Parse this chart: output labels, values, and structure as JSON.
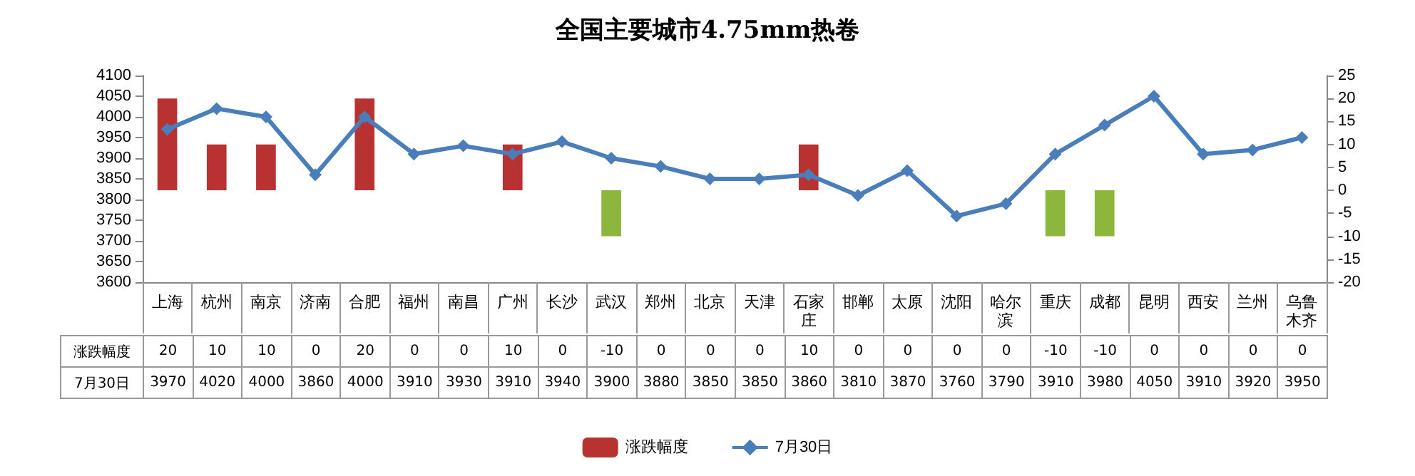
{
  "chart_data": {
    "type": "bar",
    "title": "全国主要城市4.75mm热卷",
    "categories": [
      "上海",
      "杭州",
      "南京",
      "济南",
      "合肥",
      "福州",
      "南昌",
      "广州",
      "长沙",
      "武汉",
      "郑州",
      "北京",
      "天津",
      "石家庄",
      "邯郸",
      "太原",
      "沈阳",
      "哈尔滨",
      "重庆",
      "成都",
      "昆明",
      "西安",
      "兰州",
      "乌鲁木齐"
    ],
    "series": [
      {
        "name": "涨跌幅度",
        "axis": "y2",
        "color": "#b83232",
        "colors": [
          "#b83232",
          "#b83232",
          "#b83232",
          "#b83232",
          "#b83232",
          "#b83232",
          "#b83232",
          "#b83232",
          "#b83232",
          "#8db63c",
          "#b83232",
          "#b83232",
          "#b83232",
          "#b83232",
          "#b83232",
          "#b83232",
          "#b83232",
          "#b83232",
          "#8db63c",
          "#8db63c",
          "#b83232",
          "#b83232",
          "#b83232",
          "#b83232"
        ],
        "values": [
          20,
          10,
          10,
          0,
          20,
          0,
          0,
          10,
          0,
          -10,
          0,
          0,
          0,
          10,
          0,
          0,
          0,
          0,
          -10,
          -10,
          0,
          0,
          0,
          0
        ]
      },
      {
        "name": "7月30日",
        "type": "line",
        "color": "#4a7ebb",
        "values": [
          3970,
          4020,
          4000,
          3860,
          4000,
          3910,
          3930,
          3910,
          3940,
          3900,
          3880,
          3850,
          3850,
          3860,
          3810,
          3870,
          3760,
          3790,
          3910,
          3980,
          4050,
          3910,
          3920,
          3950
        ]
      }
    ],
    "ylim": [
      3600,
      4100
    ],
    "yticks": [
      3600,
      3650,
      3700,
      3750,
      3800,
      3850,
      3900,
      3950,
      4000,
      4050,
      4100
    ],
    "y2lim": [
      -20,
      25
    ],
    "y2ticks": [
      -20,
      -15,
      -10,
      -5,
      0,
      5,
      10,
      15,
      20,
      25
    ],
    "data_labels": true,
    "grid": false,
    "legend": "bottom",
    "marker": "diamond",
    "line_style": "solid"
  }
}
